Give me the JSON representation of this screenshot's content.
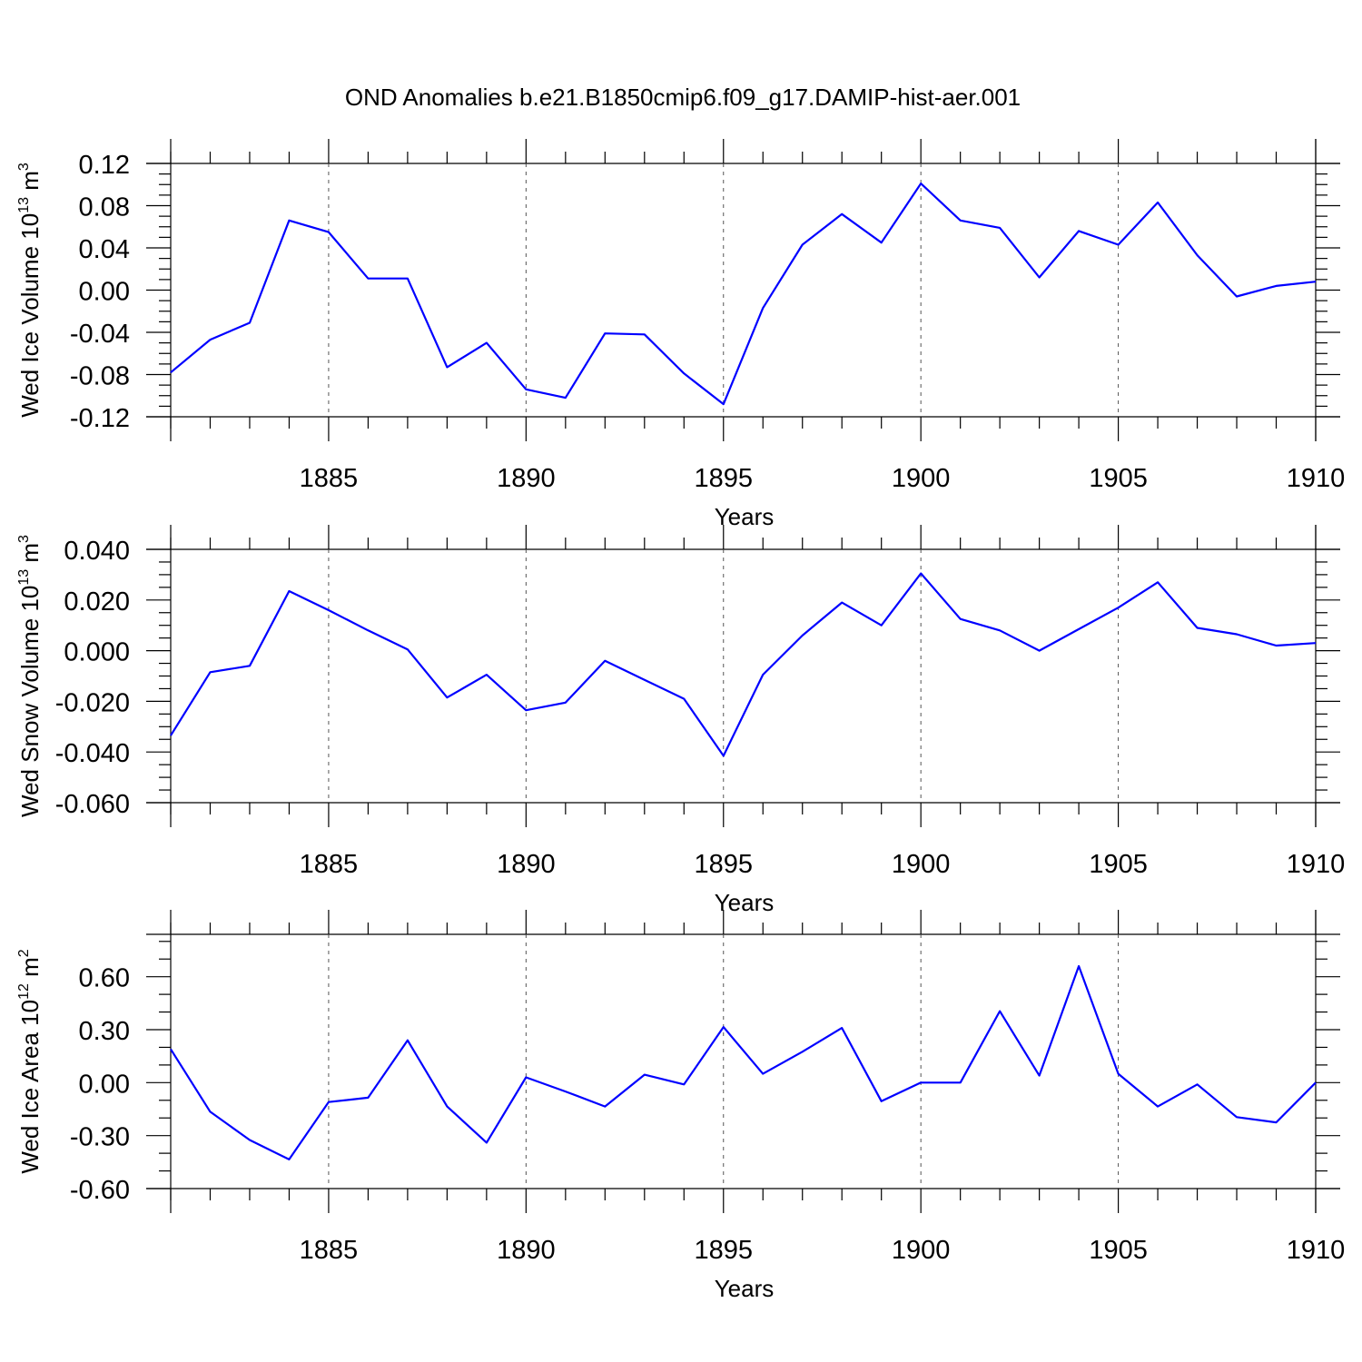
{
  "title": "OND Anomalies b.e21.B1850cmip6.f09_g17.DAMIP-hist-aer.001",
  "colors": {
    "line": "#0000ff",
    "axes": "#000000",
    "grid": "#555555"
  },
  "chart_data": [
    {
      "type": "line",
      "ylabel": {
        "main": "Wed Ice Volume 10",
        "exp": "13",
        "unit": " m",
        "unit_exp": "3"
      },
      "xlabel": "Years",
      "xlim": [
        1881,
        1910
      ],
      "ylim": [
        -0.12,
        0.12
      ],
      "yticks": [
        -0.12,
        -0.08,
        -0.04,
        0.0,
        0.04,
        0.08,
        0.12
      ],
      "ytick_labels": [
        "-0.12",
        "-0.08",
        "-0.04",
        "0.00",
        "0.04",
        "0.08",
        "0.12"
      ],
      "yminor": 0.01,
      "xticks": [
        1885,
        1890,
        1895,
        1900,
        1905,
        1910
      ],
      "xtick_labels": [
        "1885",
        "1890",
        "1895",
        "1900",
        "1905",
        "1910"
      ],
      "grid": "x-major dashed",
      "x": [
        1881,
        1882,
        1883,
        1884,
        1885,
        1886,
        1887,
        1888,
        1889,
        1890,
        1891,
        1892,
        1893,
        1894,
        1895,
        1896,
        1897,
        1898,
        1899,
        1900,
        1901,
        1902,
        1903,
        1904,
        1905,
        1906,
        1907,
        1908,
        1909,
        1910
      ],
      "series": [
        {
          "values": [
            -0.078,
            -0.047,
            -0.031,
            0.066,
            0.055,
            0.011,
            0.011,
            -0.073,
            -0.05,
            -0.094,
            -0.102,
            -0.041,
            -0.042,
            -0.079,
            -0.108,
            -0.017,
            0.043,
            0.072,
            0.045,
            0.101,
            0.066,
            0.059,
            0.012,
            0.056,
            0.043,
            0.083,
            0.033,
            -0.006,
            0.004,
            0.008
          ]
        }
      ]
    },
    {
      "type": "line",
      "ylabel": {
        "main": "Wed Snow Volume 10",
        "exp": "13",
        "unit": " m",
        "unit_exp": "3"
      },
      "xlabel": "Years",
      "xlim": [
        1881,
        1910
      ],
      "ylim": [
        -0.06,
        0.04
      ],
      "yticks": [
        -0.06,
        -0.04,
        -0.02,
        0.0,
        0.02,
        0.04
      ],
      "ytick_labels": [
        "-0.060",
        "-0.040",
        "-0.020",
        "0.000",
        "0.020",
        "0.040"
      ],
      "yminor": 0.005,
      "xticks": [
        1885,
        1890,
        1895,
        1900,
        1905,
        1910
      ],
      "xtick_labels": [
        "1885",
        "1890",
        "1895",
        "1900",
        "1905",
        "1910"
      ],
      "grid": "x-major dashed",
      "x": [
        1881,
        1882,
        1883,
        1884,
        1885,
        1886,
        1887,
        1888,
        1889,
        1890,
        1891,
        1892,
        1893,
        1894,
        1895,
        1896,
        1897,
        1898,
        1899,
        1900,
        1901,
        1902,
        1903,
        1904,
        1905,
        1906,
        1907,
        1908,
        1909,
        1910
      ],
      "series": [
        {
          "values": [
            -0.0335,
            -0.0085,
            -0.006,
            0.0235,
            0.016,
            0.008,
            0.0005,
            -0.0185,
            -0.0095,
            -0.0235,
            -0.0205,
            -0.004,
            -0.0115,
            -0.019,
            -0.0415,
            -0.0095,
            0.006,
            0.019,
            0.01,
            0.0305,
            0.0125,
            0.008,
            0.0,
            0.0085,
            0.017,
            0.027,
            0.009,
            0.0065,
            0.002,
            0.003
          ]
        }
      ]
    },
    {
      "type": "line",
      "ylabel": {
        "main": "Wed Ice Area 10",
        "exp": "12",
        "unit": " m",
        "unit_exp": "2"
      },
      "xlabel": "Years",
      "xlim": [
        1881,
        1910
      ],
      "ylim": [
        -0.6,
        0.84
      ],
      "yticks": [
        -0.6,
        -0.3,
        0.0,
        0.3,
        0.6
      ],
      "ytick_labels": [
        "-0.60",
        "-0.30",
        "0.00",
        "0.30",
        "0.60"
      ],
      "yminor": 0.1,
      "xticks": [
        1885,
        1890,
        1895,
        1900,
        1905,
        1910
      ],
      "xtick_labels": [
        "1885",
        "1890",
        "1895",
        "1900",
        "1905",
        "1910"
      ],
      "grid": "x-major dashed",
      "x": [
        1881,
        1882,
        1883,
        1884,
        1885,
        1886,
        1887,
        1888,
        1889,
        1890,
        1891,
        1892,
        1893,
        1894,
        1895,
        1896,
        1897,
        1898,
        1899,
        1900,
        1901,
        1902,
        1903,
        1904,
        1905,
        1906,
        1907,
        1908,
        1909,
        1910
      ],
      "series": [
        {
          "values": [
            0.19,
            -0.165,
            -0.325,
            -0.435,
            -0.11,
            -0.085,
            0.24,
            -0.135,
            -0.34,
            0.03,
            -0.05,
            -0.135,
            0.045,
            -0.01,
            0.315,
            0.05,
            0.175,
            0.31,
            -0.105,
            0.0,
            0.0,
            0.405,
            0.04,
            0.66,
            0.05,
            -0.135,
            -0.01,
            -0.195,
            -0.225,
            0.0
          ]
        }
      ]
    }
  ]
}
